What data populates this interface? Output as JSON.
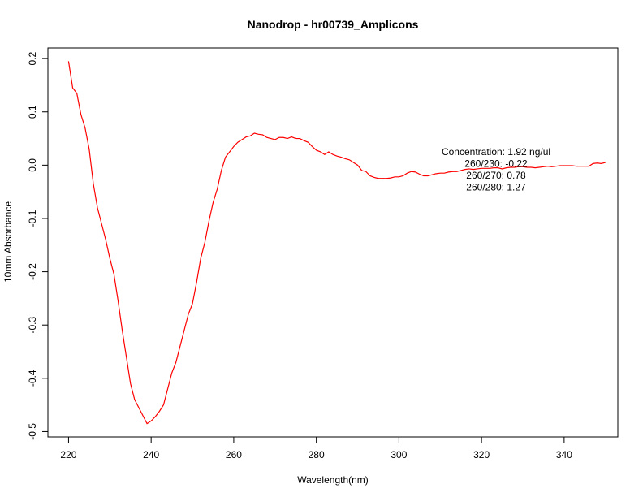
{
  "chart_data": {
    "type": "line",
    "title": "Nanodrop - hr00739_Amplicons",
    "xlabel": "Wavelength(nm)",
    "ylabel": "10mm Absorbance",
    "xlim": [
      215,
      353
    ],
    "ylim": [
      -0.51,
      0.22
    ],
    "xticks": [
      220,
      240,
      260,
      280,
      300,
      320,
      340
    ],
    "yticks": [
      -0.5,
      -0.4,
      -0.3,
      -0.2,
      -0.1,
      0.0,
      0.1,
      0.2
    ],
    "xtick_labels": [
      "220",
      "240",
      "260",
      "280",
      "300",
      "320",
      "340"
    ],
    "ytick_labels": [
      "-0.5",
      "-0.4",
      "-0.3",
      "-0.2",
      "-0.1",
      "0.0",
      "0.1",
      "0.2"
    ],
    "grid": false,
    "series_color": "#ff0000",
    "annotations": [
      "Concentration: 1.92 ng/ul",
      "260/230: -0.22",
      "260/270: 0.78",
      "260/280: 1.27"
    ],
    "series": [
      {
        "x": [
          220,
          221,
          222,
          223,
          224,
          225,
          226,
          227,
          228,
          229,
          230,
          231,
          232,
          233,
          234,
          235,
          236,
          237,
          238,
          239,
          240,
          241,
          242,
          243,
          244,
          245,
          246,
          247,
          248,
          249,
          250,
          251,
          252,
          253,
          254,
          255,
          256,
          257,
          258,
          259,
          260,
          261,
          262,
          263,
          264,
          265,
          266,
          267,
          268,
          269,
          270,
          271,
          272,
          273,
          274,
          275,
          276,
          277,
          278,
          279,
          280,
          281,
          282,
          283,
          284,
          285,
          286,
          287,
          288,
          289,
          290,
          291,
          292,
          293,
          294,
          295,
          296,
          297,
          298,
          299,
          300,
          301,
          302,
          303,
          304,
          305,
          306,
          307,
          308,
          309,
          310,
          311,
          312,
          313,
          314,
          315,
          316,
          317,
          318,
          319,
          320,
          321,
          322,
          323,
          324,
          325,
          326,
          327,
          328,
          329,
          330,
          331,
          332,
          333,
          334,
          335,
          336,
          337,
          338,
          339,
          340,
          341,
          342,
          343,
          344,
          345,
          346,
          347,
          348,
          349,
          350
        ],
        "y": [
          0.195,
          0.145,
          0.135,
          0.095,
          0.07,
          0.03,
          -0.035,
          -0.08,
          -0.11,
          -0.14,
          -0.175,
          -0.205,
          -0.255,
          -0.31,
          -0.36,
          -0.41,
          -0.44,
          -0.455,
          -0.47,
          -0.485,
          -0.48,
          -0.472,
          -0.462,
          -0.45,
          -0.42,
          -0.39,
          -0.37,
          -0.34,
          -0.31,
          -0.28,
          -0.26,
          -0.22,
          -0.175,
          -0.145,
          -0.105,
          -0.07,
          -0.045,
          -0.01,
          0.015,
          0.025,
          0.035,
          0.043,
          0.048,
          0.053,
          0.055,
          0.06,
          0.058,
          0.057,
          0.052,
          0.05,
          0.048,
          0.052,
          0.052,
          0.05,
          0.053,
          0.05,
          0.05,
          0.046,
          0.043,
          0.035,
          0.028,
          0.025,
          0.02,
          0.025,
          0.02,
          0.017,
          0.015,
          0.012,
          0.01,
          0.005,
          0.0,
          -0.01,
          -0.012,
          -0.02,
          -0.023,
          -0.025,
          -0.025,
          -0.025,
          -0.024,
          -0.022,
          -0.022,
          -0.02,
          -0.015,
          -0.012,
          -0.013,
          -0.017,
          -0.02,
          -0.02,
          -0.018,
          -0.016,
          -0.015,
          -0.015,
          -0.013,
          -0.012,
          -0.012,
          -0.01,
          -0.008,
          -0.007,
          -0.008,
          -0.007,
          -0.006,
          -0.006,
          -0.006,
          -0.005,
          -0.005,
          -0.007,
          -0.005,
          -0.004,
          -0.004,
          -0.003,
          -0.003,
          -0.004,
          -0.004,
          -0.005,
          -0.004,
          -0.003,
          -0.002,
          -0.003,
          -0.002,
          -0.001,
          -0.001,
          -0.001,
          -0.001,
          -0.002,
          -0.002,
          -0.002,
          -0.002,
          0.003,
          0.004,
          0.003,
          0.005
        ]
      }
    ]
  }
}
